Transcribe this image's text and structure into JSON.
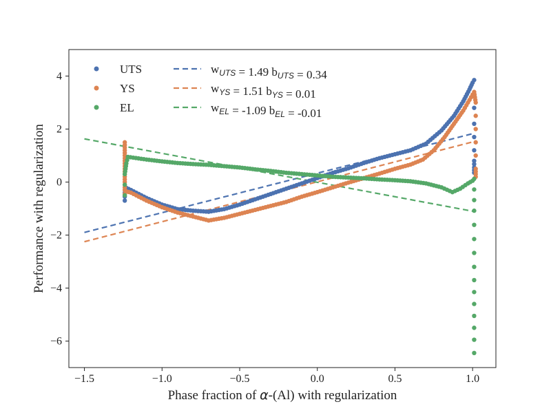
{
  "chart_data": {
    "type": "scatter",
    "title": "",
    "xlabel_parts": {
      "alpha": "α",
      "rest": "-(Al) with regularization",
      "prefix": "Phase fraction of "
    },
    "ylabel": "Performance with regularization",
    "xlim": [
      -1.6,
      1.15
    ],
    "ylim": [
      -7,
      5
    ],
    "xticks": [
      -1.5,
      -1.0,
      -0.5,
      0.0,
      0.5,
      1.0
    ],
    "xtick_labels": [
      "−1.5",
      "−1.0",
      "−0.5",
      "0.0",
      "0.5",
      "1.0"
    ],
    "yticks": [
      -6,
      -4,
      -2,
      0,
      2,
      4
    ],
    "ytick_labels": [
      "−6",
      "−4",
      "−2",
      "0",
      "2",
      "4"
    ],
    "grid": false,
    "legend_position": "top-left",
    "series": [
      {
        "name": "UTS",
        "kind": "scatter",
        "color": "#4c72b0",
        "points": [
          [
            -1.24,
            -0.7
          ],
          [
            -1.24,
            -0.55
          ],
          [
            -1.24,
            -0.4
          ],
          [
            -1.24,
            -0.3
          ],
          [
            -1.23,
            -0.22
          ],
          [
            -1.2,
            -0.3
          ],
          [
            -1.1,
            -0.6
          ],
          [
            -1.0,
            -0.85
          ],
          [
            -0.9,
            -1.02
          ],
          [
            -0.8,
            -1.08
          ],
          [
            -0.7,
            -1.12
          ],
          [
            -0.6,
            -1.02
          ],
          [
            -0.5,
            -0.85
          ],
          [
            -0.4,
            -0.65
          ],
          [
            -0.3,
            -0.45
          ],
          [
            -0.2,
            -0.25
          ],
          [
            -0.1,
            -0.05
          ],
          [
            0.0,
            0.15
          ],
          [
            0.1,
            0.35
          ],
          [
            0.2,
            0.52
          ],
          [
            0.3,
            0.72
          ],
          [
            0.4,
            0.9
          ],
          [
            0.5,
            1.05
          ],
          [
            0.6,
            1.2
          ],
          [
            0.7,
            1.45
          ],
          [
            0.8,
            1.95
          ],
          [
            0.88,
            2.5
          ],
          [
            0.94,
            3.05
          ],
          [
            0.98,
            3.5
          ],
          [
            1.0,
            3.75
          ],
          [
            1.01,
            3.85
          ],
          [
            1.01,
            3.3
          ],
          [
            1.01,
            2.8
          ],
          [
            1.01,
            2.2
          ],
          [
            1.01,
            1.7
          ],
          [
            1.01,
            1.2
          ],
          [
            1.01,
            0.8
          ],
          [
            1.01,
            0.55
          ],
          [
            1.01,
            0.35
          ]
        ]
      },
      {
        "name": "YS",
        "kind": "scatter",
        "color": "#dd8452",
        "points": [
          [
            -1.24,
            1.5
          ],
          [
            -1.24,
            1.2
          ],
          [
            -1.24,
            0.9
          ],
          [
            -1.24,
            0.6
          ],
          [
            -1.24,
            0.3
          ],
          [
            -1.24,
            0.0
          ],
          [
            -1.24,
            -0.3
          ],
          [
            -1.24,
            -0.45
          ],
          [
            -1.23,
            -0.35
          ],
          [
            -1.2,
            -0.4
          ],
          [
            -1.1,
            -0.7
          ],
          [
            -1.0,
            -0.95
          ],
          [
            -0.9,
            -1.15
          ],
          [
            -0.8,
            -1.3
          ],
          [
            -0.7,
            -1.45
          ],
          [
            -0.6,
            -1.35
          ],
          [
            -0.5,
            -1.2
          ],
          [
            -0.4,
            -1.05
          ],
          [
            -0.3,
            -0.9
          ],
          [
            -0.2,
            -0.75
          ],
          [
            -0.1,
            -0.55
          ],
          [
            0.0,
            -0.38
          ],
          [
            0.1,
            -0.2
          ],
          [
            0.2,
            -0.02
          ],
          [
            0.3,
            0.15
          ],
          [
            0.4,
            0.32
          ],
          [
            0.5,
            0.5
          ],
          [
            0.6,
            0.66
          ],
          [
            0.68,
            0.85
          ],
          [
            0.75,
            1.2
          ],
          [
            0.82,
            1.7
          ],
          [
            0.88,
            2.2
          ],
          [
            0.94,
            2.7
          ],
          [
            0.98,
            3.1
          ],
          [
            1.01,
            3.4
          ],
          [
            1.02,
            3.0
          ],
          [
            1.02,
            2.5
          ],
          [
            1.02,
            2.0
          ],
          [
            1.02,
            1.5
          ],
          [
            1.02,
            1.0
          ],
          [
            1.02,
            0.5
          ],
          [
            1.02,
            0.2
          ]
        ]
      },
      {
        "name": "EL",
        "kind": "scatter",
        "color": "#55a868",
        "points": [
          [
            -1.24,
            -0.5
          ],
          [
            -1.24,
            -0.1
          ],
          [
            -1.24,
            0.3
          ],
          [
            -1.23,
            0.7
          ],
          [
            -1.22,
            0.95
          ],
          [
            -1.1,
            0.85
          ],
          [
            -1.0,
            0.78
          ],
          [
            -0.9,
            0.72
          ],
          [
            -0.8,
            0.68
          ],
          [
            -0.7,
            0.65
          ],
          [
            -0.6,
            0.6
          ],
          [
            -0.5,
            0.55
          ],
          [
            -0.4,
            0.48
          ],
          [
            -0.3,
            0.42
          ],
          [
            -0.2,
            0.35
          ],
          [
            -0.1,
            0.3
          ],
          [
            0.0,
            0.25
          ],
          [
            0.1,
            0.2
          ],
          [
            0.2,
            0.17
          ],
          [
            0.3,
            0.14
          ],
          [
            0.4,
            0.1
          ],
          [
            0.5,
            0.07
          ],
          [
            0.6,
            0.03
          ],
          [
            0.7,
            -0.05
          ],
          [
            0.8,
            -0.2
          ],
          [
            0.87,
            -0.38
          ],
          [
            0.92,
            -0.25
          ],
          [
            0.97,
            -0.05
          ],
          [
            1.0,
            0.05
          ],
          [
            1.01,
            0.12
          ],
          [
            1.01,
            -1.08
          ],
          [
            1.01,
            -2.15
          ],
          [
            1.01,
            -3.2
          ],
          [
            1.01,
            -3.7
          ],
          [
            1.01,
            -4.15
          ],
          [
            1.01,
            -4.6
          ],
          [
            1.01,
            -5.05
          ],
          [
            1.01,
            -5.5
          ],
          [
            1.01,
            -5.95
          ],
          [
            1.01,
            -6.45
          ]
        ]
      },
      {
        "name_parts": {
          "w": "w",
          "sub": "UTS",
          "eq": " = 1.49  b",
          "sub2": "UTS",
          "eq2": " = 0.34"
        },
        "kind": "line",
        "style": "dashed",
        "color": "#4c72b0",
        "x": [
          -1.5,
          1.01
        ],
        "y": [
          -1.9,
          1.84
        ]
      },
      {
        "name_parts": {
          "w": "w",
          "sub": "YS",
          "eq": " = 1.51  b",
          "sub2": "YS",
          "eq2": " = 0.01"
        },
        "kind": "line",
        "style": "dashed",
        "color": "#dd8452",
        "x": [
          -1.5,
          1.01
        ],
        "y": [
          -2.25,
          1.53
        ]
      },
      {
        "name_parts": {
          "w": "w",
          "sub": "EL",
          "eq": " = -1.09  b",
          "sub2": "EL",
          "eq2": " = -0.01"
        },
        "kind": "line",
        "style": "dashed",
        "color": "#55a868",
        "x": [
          -1.5,
          1.01
        ],
        "y": [
          1.63,
          -1.11
        ]
      }
    ]
  }
}
